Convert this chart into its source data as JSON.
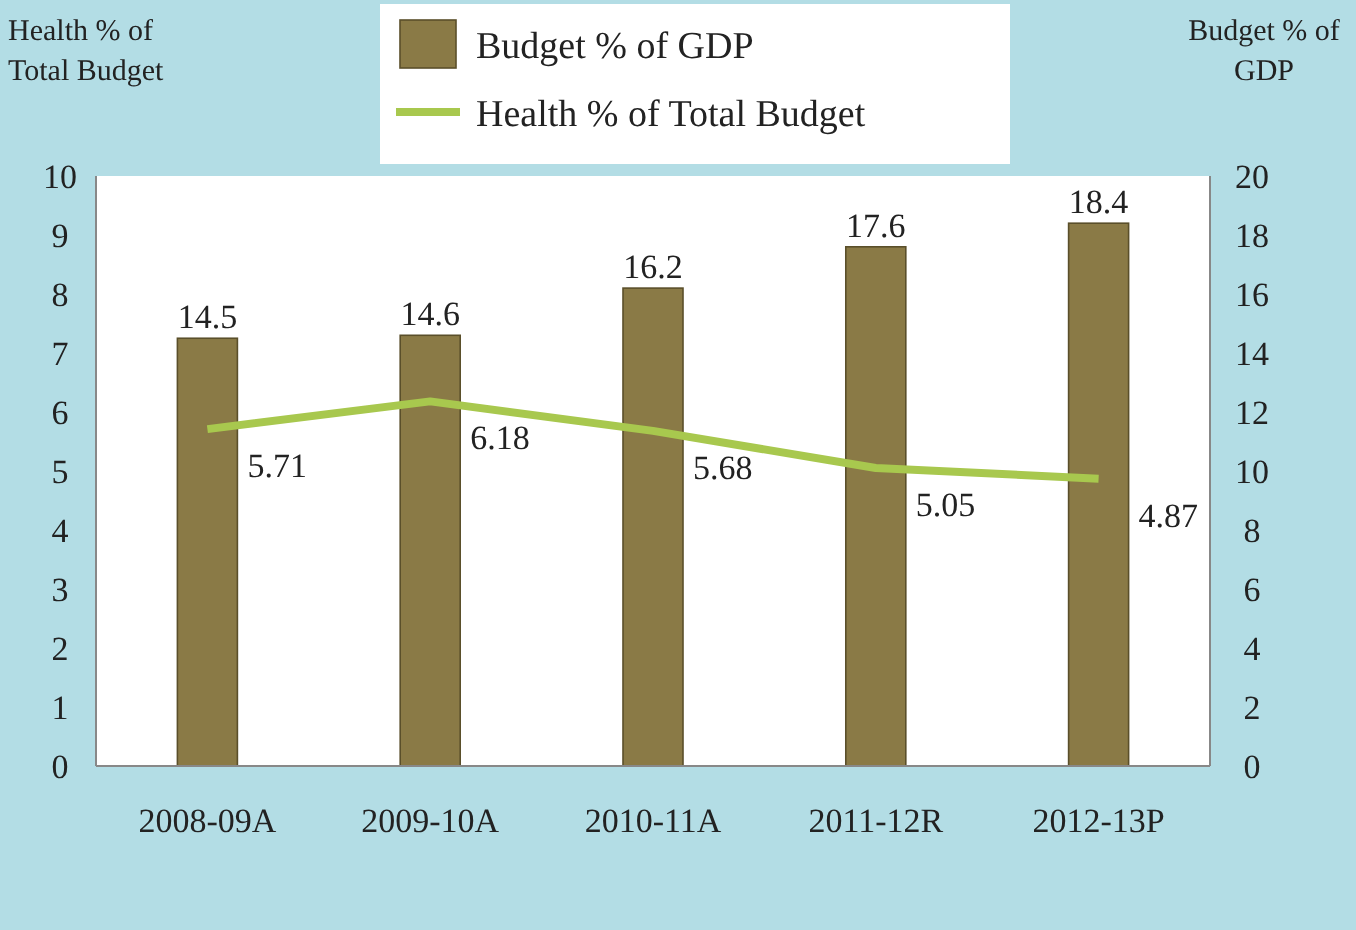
{
  "chart_data": {
    "type": "bar",
    "categories": [
      "2008-09A",
      "2009-10A",
      "2010-11A",
      "2011-12R",
      "2012-13P"
    ],
    "ylabel": "Health % of Total Budget",
    "y2label": "Budget % of GDP",
    "ylim": [
      0,
      10
    ],
    "yticks": [
      0,
      1,
      2,
      3,
      4,
      5,
      6,
      7,
      8,
      9,
      10
    ],
    "y2lim": [
      0,
      20
    ],
    "y2ticks": [
      0,
      2,
      4,
      6,
      8,
      10,
      12,
      14,
      16,
      18,
      20
    ],
    "legend": "top",
    "data_labels": true,
    "series": [
      {
        "name": "Budget % of GDP",
        "axis": "y2",
        "color": "#8a7a46",
        "values": [
          14.5,
          14.6,
          16.2,
          17.6,
          18.4
        ]
      },
      {
        "name": "Health % of Total Budget",
        "type": "line",
        "axis": "y",
        "color": "#a8c84e",
        "values": [
          5.71,
          6.18,
          5.68,
          5.05,
          4.87
        ]
      }
    ]
  }
}
